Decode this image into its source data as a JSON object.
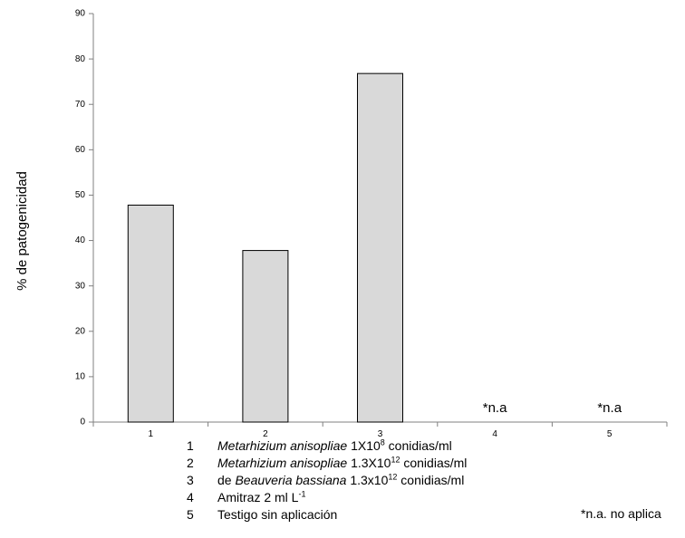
{
  "chart_data": {
    "type": "bar",
    "categories": [
      "1",
      "2",
      "3",
      "4",
      "5"
    ],
    "values": [
      47.8,
      37.8,
      76.8,
      0,
      0
    ],
    "bar_annotations": [
      "",
      "",
      "",
      "*n.a",
      "*n.a"
    ],
    "ylabel": "% de patogenicidad",
    "xlabel": "",
    "ylim": [
      0,
      90
    ],
    "yticks": [
      0,
      10,
      20,
      30,
      40,
      50,
      60,
      70,
      80,
      90
    ],
    "grid": false,
    "legend_placement": "bottom",
    "bar_color": "#d9d9d9",
    "bar_edge_color": "#000000",
    "axis_color": "#808080"
  },
  "legend_items": [
    {
      "num": "1",
      "italic": "Metarhizium anisopliae",
      "pre": "",
      "base": " 1X10",
      "sup": "8",
      "post": " conidias/ml"
    },
    {
      "num": "2",
      "italic": "Metarhizium anisopliae",
      "pre": "",
      "base": " 1.3X10",
      "sup": "12",
      "post": " conidias/ml"
    },
    {
      "num": "3",
      "italic": "Beauveria bassiana",
      "pre": "de ",
      "base": " 1.3x10",
      "sup": "12",
      "post": " conidias/ml"
    },
    {
      "num": "4",
      "italic": "",
      "pre": "Amitraz 2 ml L",
      "base": "",
      "sup": "-1",
      "post": ""
    },
    {
      "num": "5",
      "italic": "",
      "pre": "Testigo sin aplicación",
      "base": "",
      "sup": "",
      "post": ""
    }
  ],
  "footnote": "*n.a. no aplica"
}
